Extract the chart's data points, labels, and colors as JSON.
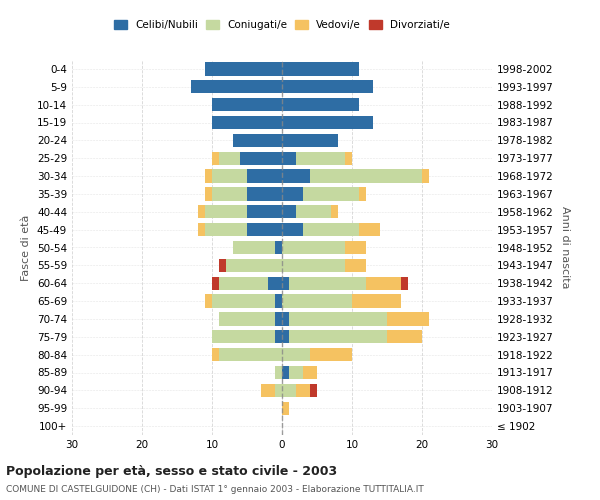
{
  "age_groups": [
    "100+",
    "95-99",
    "90-94",
    "85-89",
    "80-84",
    "75-79",
    "70-74",
    "65-69",
    "60-64",
    "55-59",
    "50-54",
    "45-49",
    "40-44",
    "35-39",
    "30-34",
    "25-29",
    "20-24",
    "15-19",
    "10-14",
    "5-9",
    "0-4"
  ],
  "birth_years": [
    "≤ 1902",
    "1903-1907",
    "1908-1912",
    "1913-1917",
    "1918-1922",
    "1923-1927",
    "1928-1932",
    "1933-1937",
    "1938-1942",
    "1943-1947",
    "1948-1952",
    "1953-1957",
    "1958-1962",
    "1963-1967",
    "1968-1972",
    "1973-1977",
    "1978-1982",
    "1983-1987",
    "1988-1992",
    "1993-1997",
    "1998-2002"
  ],
  "male": {
    "celibi": [
      0,
      0,
      0,
      0,
      0,
      1,
      1,
      1,
      2,
      0,
      1,
      5,
      5,
      5,
      5,
      6,
      7,
      10,
      10,
      13,
      11
    ],
    "coniugati": [
      0,
      0,
      1,
      1,
      9,
      9,
      8,
      9,
      7,
      8,
      6,
      6,
      6,
      5,
      5,
      3,
      0,
      0,
      0,
      0,
      0
    ],
    "vedovi": [
      0,
      0,
      2,
      0,
      1,
      0,
      0,
      1,
      0,
      0,
      0,
      1,
      1,
      1,
      1,
      1,
      0,
      0,
      0,
      0,
      0
    ],
    "divorziati": [
      0,
      0,
      0,
      0,
      0,
      0,
      0,
      0,
      1,
      1,
      0,
      0,
      0,
      0,
      0,
      0,
      0,
      0,
      0,
      0,
      0
    ]
  },
  "female": {
    "nubili": [
      0,
      0,
      0,
      1,
      0,
      1,
      1,
      0,
      1,
      0,
      0,
      3,
      2,
      3,
      4,
      2,
      8,
      13,
      11,
      13,
      11
    ],
    "coniugate": [
      0,
      0,
      2,
      2,
      4,
      14,
      14,
      10,
      11,
      9,
      9,
      8,
      5,
      8,
      16,
      7,
      0,
      0,
      0,
      0,
      0
    ],
    "vedove": [
      0,
      1,
      2,
      2,
      6,
      5,
      6,
      7,
      5,
      3,
      3,
      3,
      1,
      1,
      1,
      1,
      0,
      0,
      0,
      0,
      0
    ],
    "divorziate": [
      0,
      0,
      1,
      0,
      0,
      0,
      0,
      0,
      1,
      0,
      0,
      0,
      0,
      0,
      0,
      0,
      0,
      0,
      0,
      0,
      0
    ]
  },
  "colors": {
    "celibi": "#2E6DA4",
    "coniugati": "#C5D9A0",
    "vedovi": "#F5C261",
    "divorziati": "#C0392B"
  },
  "title": "Popolazione per età, sesso e stato civile - 2003",
  "subtitle": "COMUNE DI CASTELGUIDONE (CH) - Dati ISTAT 1° gennaio 2003 - Elaborazione TUTTITALIA.IT",
  "ylabel_left": "Fasce di età",
  "ylabel_right": "Anni di nascita",
  "xlim": 30,
  "bg_color": "#ffffff",
  "grid_color": "#cccccc",
  "legend_labels": [
    "Celibi/Nubili",
    "Coniugati/e",
    "Vedovi/e",
    "Divorziati/e"
  ]
}
